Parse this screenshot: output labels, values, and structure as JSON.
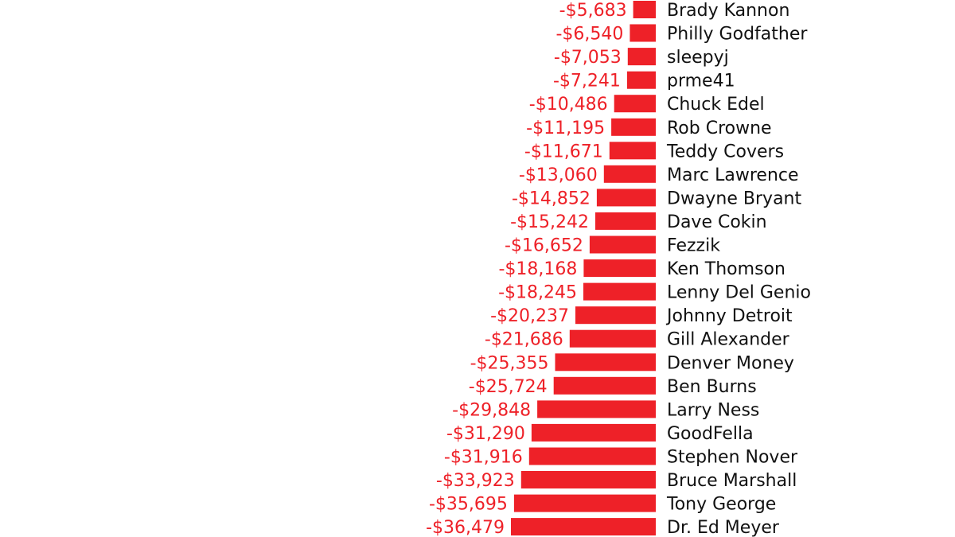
{
  "chart_data": {
    "type": "bar",
    "orientation": "horizontal",
    "title": "",
    "xlabel": "",
    "ylabel": "",
    "grid": false,
    "legend": "none",
    "bar_color": "#ee2128",
    "value_color": "#ee2128",
    "categories": [
      "Brady Kannon",
      "Philly Godfather",
      "sleepyj",
      "prme41",
      "Chuck Edel",
      "Rob Crowne",
      "Teddy Covers",
      "Marc Lawrence",
      "Dwayne Bryant",
      "Dave Cokin",
      "Fezzik",
      "Ken Thomson",
      "Lenny Del Genio",
      "Johnny Detroit",
      "Gill Alexander",
      "Denver Money",
      "Ben Burns",
      "Larry Ness",
      "GoodFella",
      "Stephen Nover",
      "Bruce Marshall",
      "Tony George",
      "Dr. Ed Meyer"
    ],
    "values": [
      -5683,
      -6540,
      -7053,
      -7241,
      -10486,
      -11195,
      -11671,
      -13060,
      -14852,
      -15242,
      -16652,
      -18168,
      -18245,
      -20237,
      -21686,
      -25355,
      -25724,
      -29848,
      -31290,
      -31916,
      -33923,
      -35695,
      -36479
    ],
    "value_labels": [
      "-$5,683",
      "-$6,540",
      "-$7,053",
      "-$7,241",
      "-$10,486",
      "-$11,195",
      "-$11,671",
      "-$13,060",
      "-$14,852",
      "-$15,242",
      "-$16,652",
      "-$18,168",
      "-$18,245",
      "-$20,237",
      "-$21,686",
      "-$25,355",
      "-$25,724",
      "-$29,848",
      "-$31,290",
      "-$31,916",
      "-$33,923",
      "-$35,695",
      "-$36,479"
    ]
  }
}
